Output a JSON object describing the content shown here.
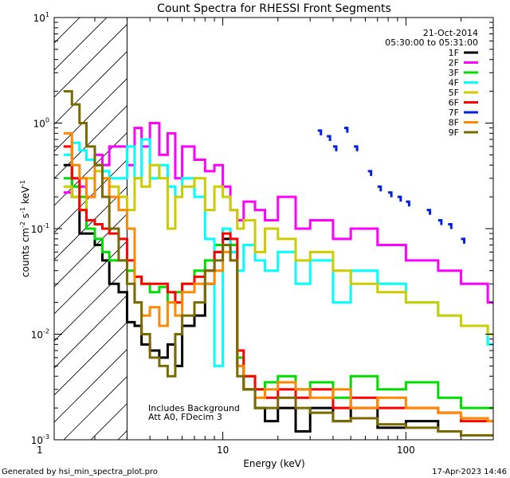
{
  "chart_data": {
    "type": "line",
    "title": "Count Spectra for RHESSI Front Segments",
    "xlabel": "Energy (keV)",
    "ylabel_parts": [
      "counts cm",
      "-2",
      " s",
      "-1",
      " keV",
      "-1"
    ],
    "xscale": "log",
    "yscale": "log",
    "xlim": [
      1.2,
      300
    ],
    "ylim": [
      0.001,
      10
    ],
    "x_ticks": [
      {
        "value": 1,
        "label": "1"
      },
      {
        "value": 10,
        "label": "10"
      },
      {
        "value": 100,
        "label": "100"
      }
    ],
    "y_ticks": [
      {
        "value": 0.001,
        "base": "10",
        "exp": "-3"
      },
      {
        "value": 0.01,
        "base": "10",
        "exp": "-2"
      },
      {
        "value": 0.1,
        "base": "10",
        "exp": "-1"
      },
      {
        "value": 1,
        "base": "10",
        "exp": "0"
      },
      {
        "value": 10,
        "base": "10",
        "exp": "1"
      }
    ],
    "date": "21-Oct-2014",
    "time_range": "05:30:00 to 05:31:00",
    "annotations": [
      "Includes Background",
      "Att A0, FDecim 3"
    ],
    "hatched_region": [
      1.2,
      3
    ],
    "series": [
      {
        "name": "1F",
        "color": "#000000",
        "x": [
          1.35,
          1.5,
          1.65,
          1.8,
          2.0,
          2.2,
          2.4,
          2.7,
          3.0,
          3.3,
          3.6,
          4.0,
          4.5,
          5.0,
          5.5,
          6.0,
          7.0,
          8.0,
          9.0,
          10.0,
          11.0,
          12.0,
          13.0,
          15.0,
          17.0,
          20.0,
          25.0,
          30.0,
          40.0,
          50.0,
          70.0,
          100.0,
          150.0,
          200.0,
          280.0
        ],
        "y": [
          0.4,
          0.2,
          0.09,
          0.09,
          0.07,
          0.05,
          0.03,
          0.025,
          0.013,
          0.012,
          0.008,
          0.007,
          0.006,
          0.008,
          0.005,
          0.012,
          0.015,
          0.03,
          0.06,
          0.08,
          0.06,
          0.005,
          0.003,
          0.002,
          0.0015,
          0.002,
          0.0012,
          0.002,
          0.0015,
          0.002,
          0.0013,
          0.0015,
          0.0012,
          0.0011,
          0.0011
        ]
      },
      {
        "name": "2F",
        "color": "#ff00ff",
        "x": [
          1.35,
          1.5,
          1.65,
          1.8,
          2.0,
          2.2,
          2.4,
          2.7,
          3.0,
          3.3,
          3.6,
          4.0,
          4.5,
          5.0,
          5.5,
          6.0,
          7.0,
          8.0,
          9.0,
          10.0,
          11.0,
          12.0,
          13.0,
          15.0,
          17.0,
          20.0,
          25.0,
          30.0,
          40.0,
          50.0,
          70.0,
          100.0,
          150.0,
          200.0,
          280.0
        ],
        "y": [
          0.22,
          0.3,
          0.25,
          0.2,
          0.5,
          0.4,
          0.6,
          0.6,
          0.4,
          0.9,
          0.6,
          1.0,
          0.5,
          0.8,
          0.3,
          0.6,
          0.45,
          0.35,
          0.4,
          0.25,
          0.15,
          0.12,
          0.18,
          0.15,
          0.12,
          0.2,
          0.1,
          0.12,
          0.08,
          0.1,
          0.07,
          0.05,
          0.04,
          0.03,
          0.02
        ]
      },
      {
        "name": "3F",
        "color": "#00dd00",
        "x": [
          1.35,
          1.5,
          1.65,
          1.8,
          2.0,
          2.2,
          2.4,
          2.7,
          3.0,
          3.3,
          3.6,
          4.0,
          4.5,
          5.0,
          5.5,
          6.0,
          7.0,
          8.0,
          9.0,
          10.0,
          11.0,
          12.0,
          13.0,
          15.0,
          17.0,
          20.0,
          25.0,
          30.0,
          40.0,
          50.0,
          70.0,
          100.0,
          150.0,
          200.0,
          280.0
        ],
        "y": [
          0.3,
          0.25,
          0.2,
          0.1,
          0.08,
          0.06,
          0.05,
          0.05,
          0.04,
          0.035,
          0.03,
          0.025,
          0.028,
          0.02,
          0.025,
          0.03,
          0.04,
          0.05,
          0.07,
          0.1,
          0.07,
          0.006,
          0.004,
          0.003,
          0.0035,
          0.004,
          0.003,
          0.0035,
          0.0025,
          0.004,
          0.003,
          0.0035,
          0.0025,
          0.002,
          0.002
        ]
      },
      {
        "name": "4F",
        "color": "#00ffff",
        "x": [
          1.35,
          1.5,
          1.65,
          1.8,
          2.0,
          2.2,
          2.4,
          2.7,
          3.0,
          3.3,
          3.6,
          4.0,
          4.5,
          5.0,
          5.5,
          6.0,
          7.0,
          8.0,
          9.0,
          10.0,
          11.0,
          12.0,
          13.0,
          15.0,
          17.0,
          20.0,
          25.0,
          30.0,
          40.0,
          50.0,
          70.0,
          100.0,
          150.0,
          200.0,
          280.0
        ],
        "y": [
          0.5,
          0.65,
          0.55,
          0.45,
          0.4,
          0.35,
          0.3,
          0.3,
          0.6,
          0.3,
          0.7,
          0.3,
          0.4,
          0.25,
          0.2,
          0.3,
          0.2,
          0.08,
          0.005,
          0.1,
          0.06,
          0.04,
          0.07,
          0.05,
          0.04,
          0.06,
          0.03,
          0.05,
          0.02,
          0.04,
          0.03,
          0.02,
          0.015,
          0.012,
          0.008
        ]
      },
      {
        "name": "5F",
        "color": "#cccc00",
        "x": [
          1.35,
          1.5,
          1.65,
          1.8,
          2.0,
          2.2,
          2.4,
          2.7,
          3.0,
          3.3,
          3.6,
          4.0,
          4.5,
          5.0,
          5.5,
          6.0,
          7.0,
          8.0,
          9.0,
          10.0,
          11.0,
          12.0,
          13.0,
          15.0,
          17.0,
          20.0,
          25.0,
          30.0,
          40.0,
          50.0,
          70.0,
          100.0,
          150.0,
          200.0,
          280.0
        ],
        "y": [
          0.25,
          0.2,
          0.15,
          0.3,
          0.35,
          0.3,
          0.25,
          0.2,
          0.15,
          0.3,
          0.25,
          0.4,
          0.3,
          0.1,
          0.2,
          0.25,
          0.3,
          0.15,
          0.25,
          0.2,
          0.15,
          0.1,
          0.12,
          0.06,
          0.1,
          0.08,
          0.05,
          0.06,
          0.04,
          0.03,
          0.025,
          0.02,
          0.015,
          0.012,
          0.01
        ]
      },
      {
        "name": "6F",
        "color": "#ff0000",
        "x": [
          1.35,
          1.5,
          1.65,
          1.8,
          2.0,
          2.2,
          2.4,
          2.7,
          3.0,
          3.3,
          3.6,
          4.0,
          4.5,
          5.0,
          5.5,
          6.0,
          7.0,
          8.0,
          9.0,
          10.0,
          11.0,
          12.0,
          13.0,
          15.0,
          17.0,
          20.0,
          25.0,
          30.0,
          40.0,
          50.0,
          70.0,
          100.0,
          150.0,
          200.0,
          280.0
        ],
        "y": [
          0.6,
          0.3,
          0.15,
          0.12,
          0.11,
          0.1,
          0.09,
          0.08,
          0.05,
          0.035,
          0.03,
          0.03,
          0.03,
          0.025,
          0.02,
          0.03,
          0.035,
          0.04,
          0.06,
          0.09,
          0.08,
          0.007,
          0.004,
          0.003,
          0.0025,
          0.003,
          0.0025,
          0.003,
          0.002,
          0.0025,
          0.002,
          0.002,
          0.0018,
          0.0015,
          0.0015
        ]
      },
      {
        "name": "7F",
        "color": "#0022dd",
        "x": [
          33,
          37,
          40,
          46,
          52,
          62,
          70,
          80,
          90,
          100,
          130,
          150,
          170,
          200
        ],
        "y": [
          0.85,
          0.75,
          0.6,
          0.9,
          0.6,
          0.35,
          0.25,
          0.22,
          0.2,
          0.18,
          0.15,
          0.12,
          0.11,
          0.08
        ]
      },
      {
        "name": "8F",
        "color": "#ff8800",
        "x": [
          1.35,
          1.5,
          1.65,
          1.8,
          2.0,
          2.2,
          2.4,
          2.7,
          3.0,
          3.3,
          3.6,
          4.0,
          4.5,
          5.0,
          5.5,
          6.0,
          7.0,
          8.0,
          9.0,
          10.0,
          11.0,
          12.0,
          13.0,
          15.0,
          17.0,
          20.0,
          25.0,
          30.0,
          40.0,
          50.0,
          70.0,
          100.0,
          150.0,
          200.0,
          280.0
        ],
        "y": [
          0.8,
          0.4,
          0.3,
          0.2,
          0.4,
          0.3,
          0.2,
          0.15,
          0.1,
          0.02,
          0.015,
          0.018,
          0.012,
          0.02,
          0.015,
          0.025,
          0.03,
          0.03,
          0.04,
          0.06,
          0.05,
          0.005,
          0.003,
          0.0025,
          0.003,
          0.0035,
          0.003,
          0.0025,
          0.003,
          0.002,
          0.0025,
          0.002,
          0.0018,
          0.0016,
          0.0015
        ]
      },
      {
        "name": "9F",
        "color": "#7a6a00",
        "x": [
          1.35,
          1.5,
          1.65,
          1.8,
          2.0,
          2.2,
          2.4,
          2.7,
          3.0,
          3.3,
          3.6,
          4.0,
          4.5,
          5.0,
          5.5,
          6.0,
          7.0,
          8.0,
          9.0,
          10.0,
          11.0,
          12.0,
          13.0,
          15.0,
          17.0,
          20.0,
          25.0,
          30.0,
          40.0,
          50.0,
          70.0,
          100.0,
          150.0,
          200.0,
          280.0
        ],
        "y": [
          2.0,
          1.5,
          1.0,
          0.6,
          0.4,
          0.2,
          0.1,
          0.05,
          0.03,
          0.02,
          0.01,
          0.006,
          0.005,
          0.004,
          0.01,
          0.015,
          0.02,
          0.04,
          0.05,
          0.07,
          0.05,
          0.004,
          0.003,
          0.002,
          0.002,
          0.0025,
          0.002,
          0.0018,
          0.0015,
          0.0016,
          0.0014,
          0.0013,
          0.0012,
          0.0011,
          0.0011
        ]
      }
    ]
  },
  "footer": {
    "generated_by": "Generated by hsi_min_spectra_plot.pro",
    "timestamp": "17-Apr-2023 14:46"
  }
}
